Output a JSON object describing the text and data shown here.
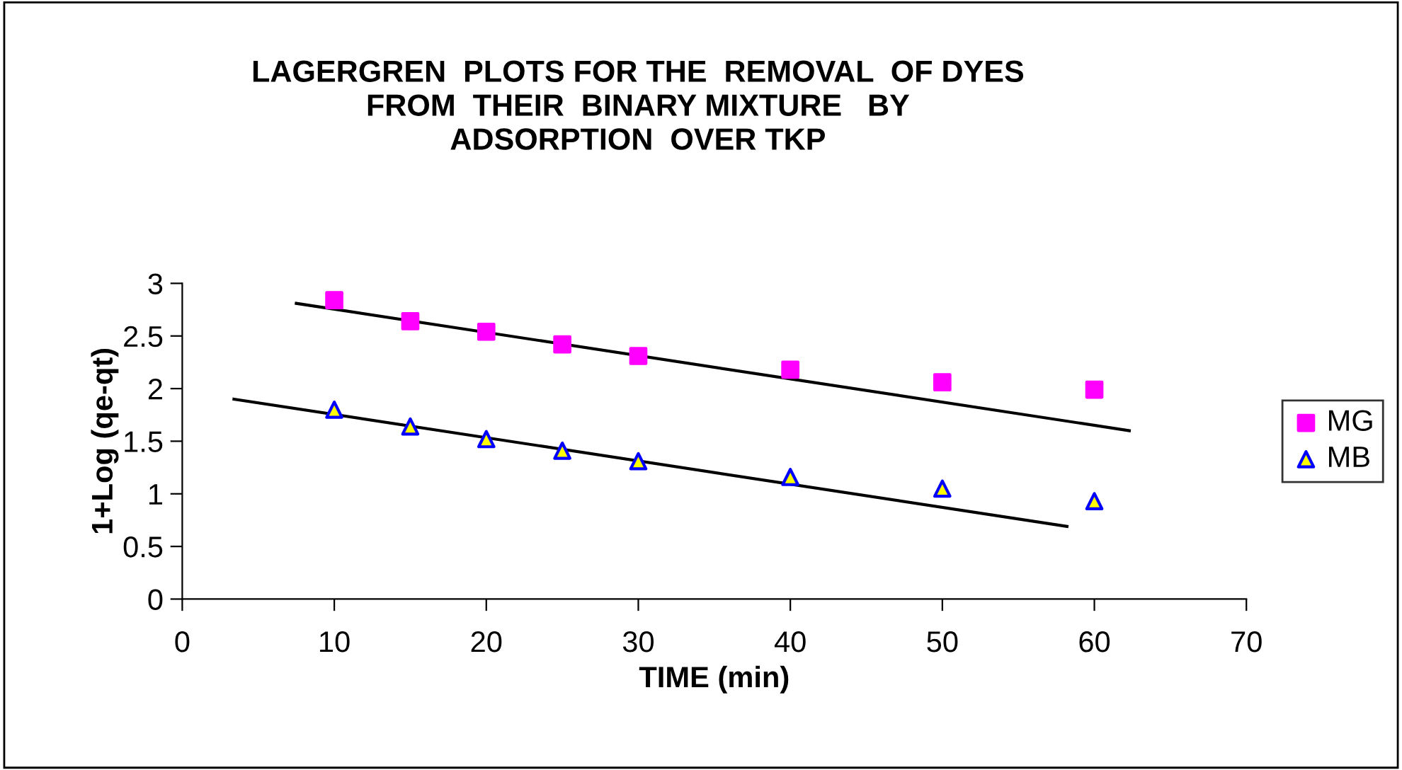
{
  "chart_data": {
    "type": "scatter",
    "title": "LAGERGREN  PLOTS FOR THE  REMOVAL  OF DYES\nFROM  THEIR  BINARY MIXTURE   BY\nADSORPTION  OVER TKP",
    "xlabel": "TIME (min)",
    "ylabel": "1+Log (qe-qt)",
    "x": [
      10,
      15,
      20,
      25,
      30,
      40,
      50,
      60
    ],
    "series": [
      {
        "name": "MG",
        "color": "#ff00ff",
        "marker": "square",
        "values": [
          2.84,
          2.64,
          2.54,
          2.42,
          2.31,
          2.18,
          2.06,
          1.99
        ]
      },
      {
        "name": "MB",
        "color": "#ffff00",
        "marker": "triangle",
        "values": [
          1.8,
          1.64,
          1.52,
          1.41,
          1.31,
          1.16,
          1.05,
          0.93
        ]
      },
      {
        "type": "line",
        "color": "#000000",
        "x": [
          7.5,
          62.3
        ],
        "values": [
          2.81,
          1.6
        ]
      },
      {
        "type": "line",
        "color": "#000000",
        "x": [
          3.4,
          58.2
        ],
        "values": [
          1.9,
          0.69
        ]
      }
    ],
    "xlim": [
      0,
      70
    ],
    "xticks": [
      0,
      10,
      20,
      30,
      40,
      50,
      60,
      70
    ],
    "ylim": [
      0,
      3
    ],
    "yticks": [
      0,
      0.5,
      1,
      1.5,
      2,
      2.5,
      3
    ],
    "grid": false,
    "legend": "right"
  }
}
